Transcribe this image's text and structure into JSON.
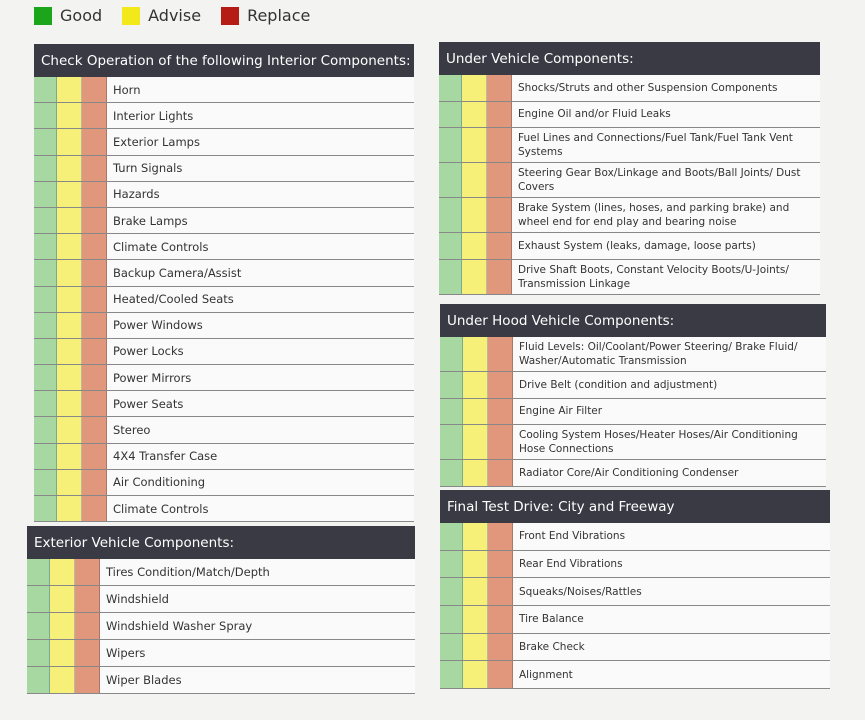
{
  "legend": [
    {
      "label": "Good",
      "color": "#1aa51a"
    },
    {
      "label": "Advise",
      "color": "#f2e81a"
    },
    {
      "label": "Replace",
      "color": "#b51c14"
    }
  ],
  "column_colors": {
    "good": "#a7d8a2",
    "advise": "#f6ef78",
    "replace": "#e0977b"
  },
  "sections": [
    {
      "title": "Check Operation of the following Interior Components:",
      "items": [
        "Horn",
        "Interior Lights",
        "Exterior Lamps",
        "Turn Signals",
        "Hazards",
        "Brake Lamps",
        "Climate Controls",
        "Backup Camera/Assist",
        "Heated/Cooled Seats",
        "Power Windows",
        "Power Locks",
        "Power Mirrors",
        "Power Seats",
        "Stereo",
        "4X4 Transfer Case",
        "Air Conditioning",
        "Climate Controls"
      ]
    },
    {
      "title": "Exterior Vehicle Components:",
      "items": [
        "Tires Condition/Match/Depth",
        "Windshield",
        "Windshield Washer Spray",
        "Wipers",
        "Wiper Blades"
      ]
    },
    {
      "title": "Under Vehicle Components:",
      "items": [
        "Shocks/Struts and other Suspension Components",
        "Engine Oil and/or Fluid Leaks",
        "Fuel Lines and Connections/Fuel Tank/Fuel Tank Vent Systems",
        "Steering Gear Box/Linkage and Boots/Ball Joints/ Dust Covers",
        "Brake System (lines, hoses, and parking brake) and wheel end for end play and bearing noise",
        "Exhaust System (leaks, damage, loose parts)",
        "Drive Shaft Boots, Constant Velocity Boots/U-Joints/ Transmission Linkage"
      ]
    },
    {
      "title": "Under Hood Vehicle Components:",
      "items": [
        "Fluid Levels: Oil/Coolant/Power Steering/ Brake Fluid/ Washer/Automatic Transmission",
        "Drive Belt (condition and adjustment)",
        "Engine Air Filter",
        "Cooling System Hoses/Heater Hoses/Air Conditioning Hose Connections",
        "Radiator Core/Air Conditioning Condenser"
      ]
    },
    {
      "title": "Final Test Drive: City and Freeway",
      "items": [
        "Front End Vibrations",
        "Rear End Vibrations",
        "Squeaks/Noises/Rattles",
        "Tire Balance",
        "Brake Check",
        "Alignment"
      ]
    }
  ]
}
